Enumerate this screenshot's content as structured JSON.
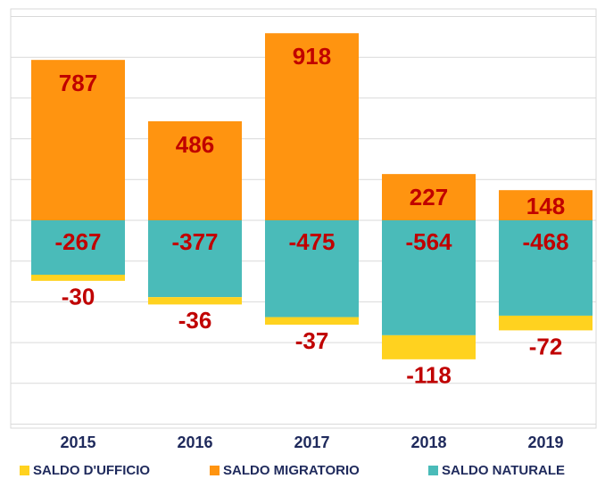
{
  "chart_data": {
    "type": "stacked_bar",
    "categories": [
      "2015",
      "2016",
      "2017",
      "2018",
      "2019"
    ],
    "series": [
      {
        "name": "SALDO D'UFFICIO",
        "color": "#ffd21f",
        "values": [
          -30,
          -36,
          -37,
          -118,
          -72
        ]
      },
      {
        "name": "SALDO MIGRATORIO",
        "color": "#ff9410",
        "values": [
          787,
          486,
          918,
          227,
          148
        ]
      },
      {
        "name": "SALDO NATURALE",
        "color": "#4abbb9",
        "values": [
          -267,
          -377,
          -475,
          -564,
          -468
        ]
      }
    ],
    "stack_order": [
      "SALDO NATURALE",
      "SALDO MIGRATORIO",
      "SALDO D'UFFICIO"
    ],
    "ylim": [
      -1000,
      1000
    ],
    "yticks": [
      -1000,
      -800,
      -600,
      -400,
      -200,
      0,
      200,
      400,
      600,
      800,
      1000
    ],
    "grid": true,
    "legend": "bottom"
  }
}
